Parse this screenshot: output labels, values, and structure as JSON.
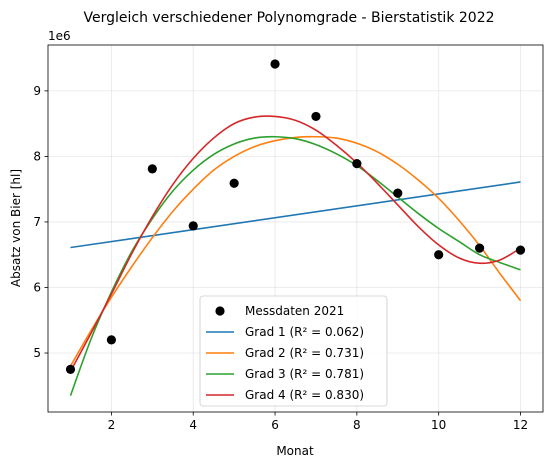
{
  "chart_data": {
    "type": "line",
    "title": "Vergleich verschiedener Polynomgrade - Bierstatistik 2022",
    "xlabel": "Monat",
    "ylabel": "Absatz von Bier [hl]",
    "y_offset_label": "1e6",
    "xlim": [
      0.45,
      12.55
    ],
    "ylim": [
      4.1,
      9.7
    ],
    "x_ticks": [
      2,
      4,
      6,
      8,
      10,
      12
    ],
    "y_ticks": [
      5,
      6,
      7,
      8,
      9
    ],
    "grid": true,
    "legend_position": "lower center",
    "scatter": {
      "name": "Messdaten 2021",
      "color": "#000000",
      "x": [
        1,
        2,
        3,
        4,
        5,
        6,
        7,
        8,
        9,
        10,
        11,
        12
      ],
      "y": [
        4.75,
        5.2,
        7.81,
        6.94,
        7.59,
        9.41,
        8.61,
        7.89,
        7.44,
        6.5,
        6.6,
        6.57
      ]
    },
    "series": [
      {
        "name": "Grad 1 (R² = 0.062)",
        "color": "#1f77b4",
        "x": [
          1,
          12
        ],
        "y": [
          6.61,
          7.61
        ]
      },
      {
        "name": "Grad 2 (R² = 0.731)",
        "color": "#ff7f0e",
        "x": [
          1,
          1.5,
          2,
          2.5,
          3,
          3.5,
          4,
          4.5,
          5,
          5.5,
          6,
          6.5,
          7,
          7.5,
          8,
          8.5,
          9,
          9.5,
          10,
          10.5,
          11,
          11.5,
          12
        ],
        "y": [
          4.8,
          5.34,
          5.85,
          6.32,
          6.76,
          7.16,
          7.5,
          7.79,
          8.0,
          8.15,
          8.24,
          8.29,
          8.3,
          8.28,
          8.2,
          8.07,
          7.88,
          7.64,
          7.36,
          7.02,
          6.64,
          6.21,
          5.8
        ]
      },
      {
        "name": "Grad 3 (R² = 0.781)",
        "color": "#2ca02c",
        "x": [
          1,
          1.5,
          2,
          2.5,
          3,
          3.5,
          4,
          4.5,
          5,
          5.5,
          6,
          6.5,
          7,
          7.5,
          8,
          8.5,
          9,
          9.5,
          10,
          10.5,
          11,
          11.5,
          12
        ],
        "y": [
          4.35,
          5.21,
          5.93,
          6.55,
          7.05,
          7.47,
          7.79,
          8.03,
          8.19,
          8.28,
          8.3,
          8.27,
          8.18,
          8.04,
          7.86,
          7.63,
          7.38,
          7.13,
          6.9,
          6.7,
          6.5,
          6.38,
          6.27
        ]
      },
      {
        "name": "Grad 4 (R² = 0.830)",
        "color": "#d62728",
        "x": [
          1,
          1.5,
          2,
          2.5,
          3,
          3.5,
          4,
          4.5,
          5,
          5.5,
          6,
          6.5,
          7,
          7.5,
          8,
          8.5,
          9,
          9.5,
          10,
          10.5,
          11,
          11.5,
          12
        ],
        "y": [
          4.72,
          5.3,
          5.9,
          6.52,
          7.08,
          7.57,
          7.97,
          8.28,
          8.5,
          8.6,
          8.61,
          8.55,
          8.4,
          8.17,
          7.9,
          7.59,
          7.26,
          6.93,
          6.65,
          6.45,
          6.37,
          6.42,
          6.6
        ]
      }
    ]
  }
}
